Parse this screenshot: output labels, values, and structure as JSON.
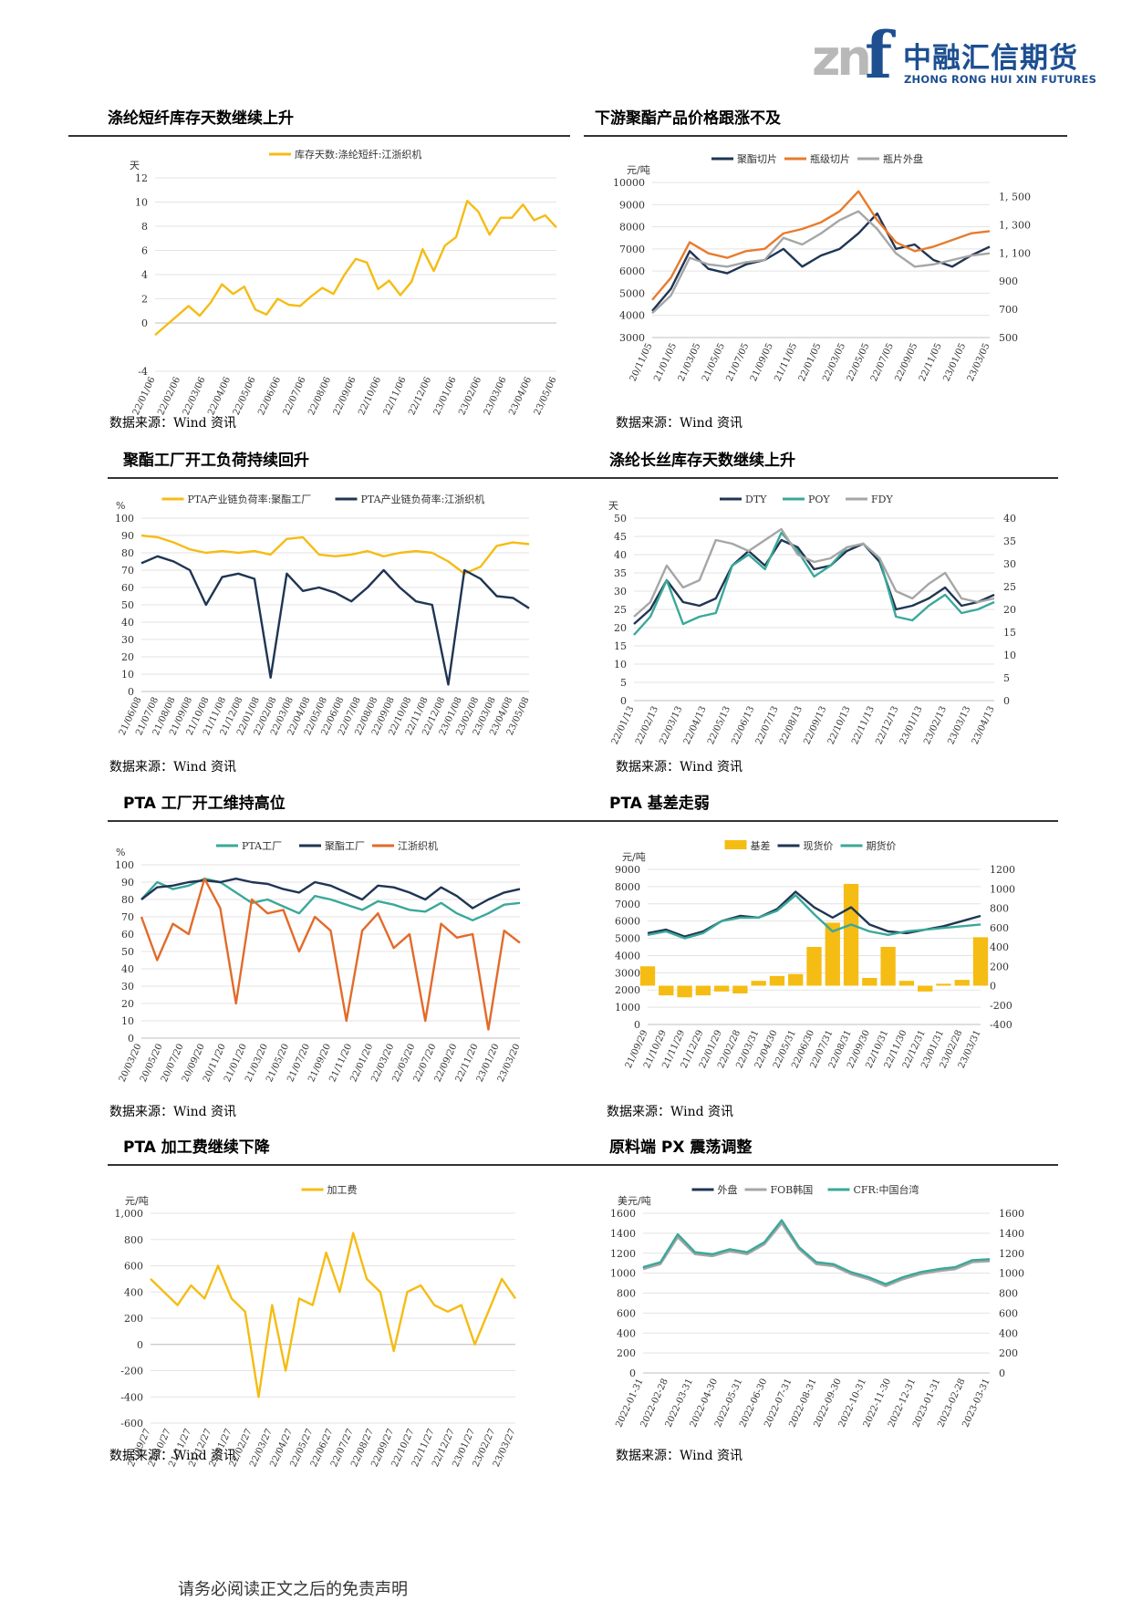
{
  "logo": {
    "mark_left": "zn",
    "mark_right": "f",
    "name_cn": "中融汇信期货",
    "name_en": "ZHONG RONG HUI XIN FUTURES"
  },
  "footer": "请务必阅读正文之后的免责声明",
  "colors": {
    "gold": "#f5bc14",
    "navy": "#1f3553",
    "orange": "#e87b2c",
    "gray": "#a6a6a6",
    "teal": "#3aa89a",
    "orange2": "#e26b2a"
  },
  "panels": [
    {
      "title": "涤纶短纤库存天数继续上升",
      "source": "数据来源：Wind 资讯"
    },
    {
      "title": "下游聚酯产品价格跟涨不及",
      "source": "数据来源：Wind 资讯"
    },
    {
      "title": "聚酯工厂开工负荷持续回升",
      "source": "数据来源：Wind 资讯"
    },
    {
      "title": "涤纶长丝库存天数继续上升",
      "source": "数据来源：Wind 资讯"
    },
    {
      "title": "PTA 工厂开工维持高位",
      "source": "数据来源：Wind 资讯"
    },
    {
      "title": "PTA 基差走弱",
      "source": "数据来源：Wind 资讯"
    },
    {
      "title": "PTA 加工费继续下降",
      "source": "数据来源：Wind 资讯"
    },
    {
      "title": "原料端 PX 震荡调整",
      "source": "数据来源：Wind 资讯"
    }
  ],
  "chart_data": [
    {
      "type": "line",
      "ylabel": "天",
      "ylim": [
        -4,
        12
      ],
      "yticks": [
        -4,
        0,
        2,
        4,
        6,
        8,
        10,
        12
      ],
      "xticks": [
        "22/01/06",
        "22/02/06",
        "22/03/06",
        "22/04/06",
        "22/05/06",
        "22/06/06",
        "22/07/06",
        "22/08/06",
        "22/09/06",
        "22/10/06",
        "22/11/06",
        "22/12/06",
        "23/01/06",
        "23/02/06",
        "23/03/06",
        "23/04/06",
        "23/05/06"
      ],
      "series": [
        {
          "name": "库存天数:涤纶短纤:江浙织机",
          "color": "gold",
          "values": [
            -1.0,
            -0.2,
            0.6,
            1.4,
            0.6,
            1.7,
            3.2,
            2.4,
            3.0,
            1.1,
            0.7,
            2.0,
            1.5,
            1.4,
            2.2,
            2.9,
            2.4,
            4.0,
            5.3,
            5.0,
            2.8,
            3.5,
            2.3,
            3.4,
            6.1,
            4.3,
            6.4,
            7.1,
            10.1,
            9.2,
            7.3,
            8.7,
            8.7,
            9.8,
            8.5,
            8.9,
            7.9
          ]
        }
      ]
    },
    {
      "type": "line",
      "ylabel": "元/吨",
      "ylim": [
        3000,
        10000
      ],
      "yticks": [
        3000,
        4000,
        5000,
        6000,
        7000,
        8000,
        9000,
        10000
      ],
      "y2lim": [
        500,
        1600
      ],
      "y2ticks": [
        "500",
        "700",
        "900",
        "1, 100",
        "1, 300",
        "1, 500"
      ],
      "xticks": [
        "20/11/05",
        "21/01/05",
        "21/03/05",
        "21/05/05",
        "21/07/05",
        "21/09/05",
        "21/11/05",
        "22/01/05",
        "22/03/05",
        "22/05/05",
        "22/07/05",
        "22/09/05",
        "22/11/05",
        "23/01/05",
        "23/03/05"
      ],
      "series": [
        {
          "name": "聚酯切片",
          "color": "navy",
          "values": [
            4200,
            5200,
            6900,
            6100,
            5900,
            6300,
            6500,
            7000,
            6200,
            6700,
            7000,
            7700,
            8600,
            7000,
            7200,
            6500,
            6200,
            6700,
            7100
          ]
        },
        {
          "name": "瓶级切片",
          "color": "orange",
          "values": [
            4700,
            5700,
            7300,
            6800,
            6600,
            6900,
            7000,
            7700,
            7900,
            8200,
            8700,
            9600,
            8300,
            7300,
            6900,
            7100,
            7400,
            7700,
            7800
          ]
        },
        {
          "name": "瓶片外盘",
          "color": "gray",
          "values": [
            4100,
            4900,
            6600,
            6300,
            6200,
            6400,
            6500,
            7500,
            7200,
            7700,
            8300,
            8700,
            7900,
            6800,
            6200,
            6300,
            6500,
            6700,
            6800
          ]
        }
      ]
    },
    {
      "type": "line",
      "ylabel": "%",
      "ylim": [
        0,
        100
      ],
      "yticks": [
        0,
        10,
        20,
        30,
        40,
        50,
        60,
        70,
        80,
        90,
        100
      ],
      "xticks": [
        "21/06/08",
        "21/07/08",
        "21/08/08",
        "21/09/08",
        "21/10/08",
        "21/11/08",
        "21/12/08",
        "22/01/08",
        "22/02/08",
        "22/03/08",
        "22/04/08",
        "22/05/08",
        "22/06/08",
        "22/07/08",
        "22/08/08",
        "22/09/08",
        "22/10/08",
        "22/11/08",
        "22/12/08",
        "23/01/08",
        "23/02/08",
        "23/03/08",
        "23/04/08",
        "23/05/08"
      ],
      "series": [
        {
          "name": "PTA产业链负荷率:聚酯工厂",
          "color": "gold",
          "values": [
            90,
            89,
            86,
            82,
            80,
            81,
            80,
            81,
            79,
            88,
            89,
            79,
            78,
            79,
            81,
            78,
            80,
            81,
            80,
            75,
            68,
            72,
            84,
            86,
            85
          ]
        },
        {
          "name": "PTA产业链负荷率:江浙织机",
          "color": "navy",
          "values": [
            74,
            78,
            75,
            70,
            50,
            66,
            68,
            65,
            8,
            68,
            58,
            60,
            57,
            52,
            60,
            70,
            60,
            52,
            50,
            4,
            70,
            65,
            55,
            54,
            48
          ]
        }
      ]
    },
    {
      "type": "line",
      "ylabel": "天",
      "ylim": [
        0,
        50
      ],
      "yticks": [
        0,
        5,
        10,
        15,
        20,
        25,
        30,
        35,
        40,
        45,
        50
      ],
      "y2lim": [
        0,
        40
      ],
      "y2ticks": [
        0,
        5,
        10,
        15,
        20,
        25,
        30,
        35,
        40
      ],
      "xticks": [
        "22/01/13",
        "22/02/13",
        "22/03/13",
        "22/04/13",
        "22/05/13",
        "22/06/13",
        "22/07/13",
        "22/08/13",
        "22/09/13",
        "22/10/13",
        "22/11/13",
        "22/12/13",
        "23/01/13",
        "23/02/13",
        "23/03/13",
        "23/04/13"
      ],
      "series": [
        {
          "name": "DTY",
          "color": "navy",
          "values": [
            21,
            25,
            33,
            27,
            26,
            28,
            37,
            41,
            37,
            44,
            42,
            36,
            37,
            41,
            43,
            38,
            25,
            26,
            28,
            31,
            26,
            27,
            29
          ]
        },
        {
          "name": "POY",
          "color": "teal",
          "values": [
            18,
            23,
            33,
            21,
            23,
            24,
            37,
            40,
            36,
            46,
            41,
            34,
            37,
            42,
            43,
            39,
            23,
            22,
            26,
            29,
            24,
            25,
            27
          ]
        },
        {
          "name": "FDY",
          "color": "gray",
          "values": [
            23,
            27,
            37,
            31,
            33,
            44,
            43,
            41,
            44,
            47,
            40,
            38,
            39,
            42,
            43,
            39,
            30,
            28,
            32,
            35,
            28,
            27,
            28
          ]
        }
      ]
    },
    {
      "type": "line",
      "ylabel": "%",
      "ylim": [
        0,
        100
      ],
      "yticks": [
        0,
        10,
        20,
        30,
        40,
        50,
        60,
        70,
        80,
        90,
        100
      ],
      "xticks": [
        "20/03/20",
        "20/05/20",
        "20/07/20",
        "20/09/20",
        "20/11/20",
        "21/01/20",
        "21/03/20",
        "21/05/20",
        "21/07/20",
        "21/09/20",
        "21/11/20",
        "22/01/20",
        "22/03/20",
        "22/05/20",
        "22/07/20",
        "22/09/20",
        "22/11/20",
        "23/01/20",
        "23/03/20"
      ],
      "series": [
        {
          "name": "PTA工厂",
          "color": "teal",
          "values": [
            80,
            90,
            86,
            88,
            92,
            90,
            84,
            78,
            80,
            76,
            72,
            82,
            80,
            77,
            74,
            79,
            77,
            74,
            73,
            78,
            72,
            68,
            72,
            77,
            78
          ]
        },
        {
          "name": "聚酯工厂",
          "color": "navy",
          "values": [
            80,
            87,
            88,
            90,
            91,
            90,
            92,
            90,
            89,
            86,
            84,
            90,
            88,
            84,
            80,
            88,
            87,
            84,
            80,
            87,
            82,
            75,
            80,
            84,
            86
          ]
        },
        {
          "name": "江浙织机",
          "color": "orange2",
          "values": [
            70,
            45,
            66,
            60,
            92,
            75,
            20,
            80,
            72,
            74,
            50,
            70,
            62,
            10,
            62,
            72,
            52,
            60,
            10,
            66,
            58,
            60,
            5,
            62,
            55
          ]
        }
      ]
    },
    {
      "type": "line",
      "ylabel": "元/吨",
      "ylim": [
        0,
        9000
      ],
      "yticks": [
        0,
        1000,
        2000,
        3000,
        4000,
        5000,
        6000,
        7000,
        8000,
        9000
      ],
      "y2lim": [
        -400,
        1200
      ],
      "y2ticks": [
        -400,
        -200,
        0,
        200,
        400,
        600,
        800,
        1000,
        1200
      ],
      "xticks": [
        "21/09/29",
        "21/10/29",
        "21/11/29",
        "21/12/29",
        "22/01/29",
        "22/02/28",
        "22/03/31",
        "22/04/30",
        "22/05/31",
        "22/06/30",
        "22/07/31",
        "22/08/31",
        "22/09/30",
        "22/10/31",
        "22/11/30",
        "22/12/31",
        "23/01/31",
        "23/02/28",
        "23/03/31"
      ],
      "series": [
        {
          "name": "基差",
          "color": "gold",
          "values": [
            200,
            -100,
            -120,
            -100,
            -60,
            -80,
            50,
            100,
            120,
            400,
            650,
            1050,
            80,
            400,
            50,
            -60,
            20,
            60,
            500
          ]
        },
        {
          "name": "现货价",
          "color": "navy",
          "values": [
            5300,
            5500,
            5100,
            5400,
            6000,
            6300,
            6200,
            6700,
            7700,
            6800,
            6200,
            6800,
            5800,
            5400,
            5300,
            5500,
            5700,
            6000,
            6300
          ]
        },
        {
          "name": "期货价",
          "color": "teal",
          "values": [
            5200,
            5400,
            5000,
            5300,
            6000,
            6200,
            6200,
            6600,
            7500,
            6400,
            5400,
            5800,
            5400,
            5200,
            5400,
            5500,
            5600,
            5700,
            5800
          ]
        }
      ]
    },
    {
      "type": "line",
      "ylabel": "元/吨",
      "ylim": [
        -600,
        1000
      ],
      "yticks": [
        "-600",
        "-400",
        "-200",
        "0",
        "200",
        "400",
        "600",
        "800",
        "1,000"
      ],
      "xticks": [
        "21/09/27",
        "21/10/27",
        "21/11/27",
        "21/12/27",
        "22/01/27",
        "22/02/27",
        "22/03/27",
        "22/04/27",
        "22/05/27",
        "22/06/27",
        "22/07/27",
        "22/08/27",
        "22/09/27",
        "22/10/27",
        "22/11/27",
        "22/12/27",
        "23/01/27",
        "23/02/27",
        "23/03/27"
      ],
      "series": [
        {
          "name": "加工费",
          "color": "gold",
          "values": [
            500,
            400,
            300,
            450,
            350,
            600,
            350,
            250,
            -400,
            300,
            -200,
            350,
            300,
            700,
            400,
            850,
            500,
            400,
            -50,
            400,
            450,
            300,
            250,
            300,
            0,
            250,
            500,
            350
          ]
        }
      ]
    },
    {
      "type": "line",
      "ylabel": "美元/吨",
      "ylim": [
        0,
        1600
      ],
      "yticks": [
        0,
        200,
        400,
        600,
        800,
        1000,
        1200,
        1400,
        1600
      ],
      "y2lim": [
        0,
        1600
      ],
      "y2ticks": [
        0,
        200,
        400,
        600,
        800,
        1000,
        1200,
        1400,
        1600
      ],
      "xticks": [
        "2022-01-31",
        "2022-02-28",
        "2022-03-31",
        "2022-04-30",
        "2022-05-31",
        "2022-06-30",
        "2022-07-31",
        "2022-08-31",
        "2022-09-30",
        "2022-10-31",
        "2022-11-30",
        "2022-12-31",
        "2023-01-31",
        "2023-02-28",
        "2023-03-31"
      ],
      "series": [
        {
          "name": "外盘",
          "color": "navy",
          "values": [
            1050,
            1100,
            1380,
            1200,
            1180,
            1230,
            1200,
            1300,
            1520,
            1250,
            1100,
            1080,
            1000,
            950,
            880,
            950,
            1000,
            1030,
            1050,
            1120,
            1130
          ]
        },
        {
          "name": "FOB韩国",
          "color": "gray",
          "values": [
            1040,
            1090,
            1360,
            1190,
            1170,
            1220,
            1190,
            1290,
            1500,
            1240,
            1090,
            1070,
            990,
            940,
            870,
            940,
            990,
            1020,
            1040,
            1110,
            1120
          ]
        },
        {
          "name": "CFR:中国台湾",
          "color": "teal",
          "values": [
            1060,
            1110,
            1390,
            1210,
            1190,
            1240,
            1210,
            1310,
            1530,
            1260,
            1110,
            1090,
            1010,
            960,
            890,
            960,
            1010,
            1040,
            1060,
            1130,
            1140
          ]
        }
      ]
    }
  ]
}
